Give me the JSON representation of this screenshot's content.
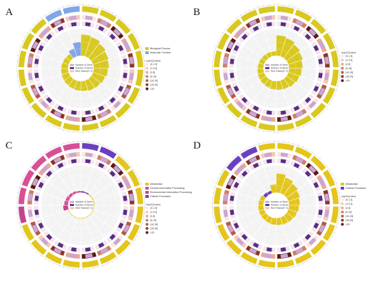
{
  "colors": {
    "biological_process": "#d9c81e",
    "molecular_function": "#7fa6e6",
    "metabolism": "#e3c51c",
    "genetic_information_processing": "#d84f95",
    "environmental_information_processing": "#c2448c",
    "cellular_processes": "#6a3fc0",
    "number_of_gene": "#c9a6d6",
    "number_of_degs": "#5b2d82",
    "rich_factor": "#f1c4a4",
    "pval_scale": [
      "#fbe7df",
      "#f4c9bc",
      "#e9a894",
      "#d27e69",
      "#b45a47",
      "#8c3527",
      "#5c1a12"
    ]
  },
  "panels": [
    {
      "letter": "A"
    },
    {
      "letter": "B"
    },
    {
      "letter": "C"
    },
    {
      "letter": "D"
    }
  ],
  "chart_data": [
    {
      "type": "circular-bar",
      "panel": "A",
      "legend": {
        "categories": [
          "Biological Process",
          "Molecular Function"
        ],
        "rings": [
          "Number of Gene",
          "Number of DEGs",
          "Rich Factor(0~1)"
        ],
        "pval_title": "-log10(Qvalue)",
        "pval_bins": [
          "(0,1.3]",
          "(1.3,2]",
          "(2,5]",
          "(5,10]",
          "(10,15]",
          "(15,20]",
          ">20"
        ]
      },
      "term_class": [
        "Biological Process",
        "Biological Process",
        "Biological Process",
        "Biological Process",
        "Biological Process",
        "Biological Process",
        "Biological Process",
        "Biological Process",
        "Biological Process",
        "Biological Process",
        "Biological Process",
        "Biological Process",
        "Biological Process",
        "Biological Process",
        "Biological Process",
        "Biological Process",
        "Biological Process",
        "Biological Process",
        "Molecular Function",
        "Molecular Function"
      ],
      "rich_factor": [
        0.78,
        0.74,
        0.66,
        0.6,
        0.56,
        0.52,
        0.46,
        0.42,
        0.4,
        0.36,
        0.34,
        0.32,
        0.3,
        0.28,
        0.26,
        0.24,
        0.22,
        0.2,
        0.3,
        0.5
      ]
    },
    {
      "type": "circular-bar",
      "panel": "B",
      "legend": {
        "categories": [],
        "rings": [
          "Number of Gene",
          "Number of DEGs",
          "Rich Factor(0~1)"
        ],
        "pval_title": "-log10(Qvalue)",
        "pval_bins": [
          "(0,1.3]",
          "(1.3,2]",
          "(2,5]",
          "(5,10]",
          "(10,15]",
          "(15,20]",
          ">20"
        ]
      },
      "term_class": [
        "Biological Process",
        "Biological Process",
        "Biological Process",
        "Biological Process",
        "Biological Process",
        "Biological Process",
        "Biological Process",
        "Biological Process",
        "Biological Process",
        "Biological Process",
        "Biological Process",
        "Biological Process",
        "Biological Process",
        "Biological Process",
        "Biological Process",
        "Biological Process",
        "Biological Process",
        "Biological Process",
        "Biological Process",
        "Biological Process"
      ],
      "rich_factor": [
        0.75,
        0.7,
        0.62,
        0.56,
        0.5,
        0.46,
        0.42,
        0.38,
        0.34,
        0.32,
        0.3,
        0.28,
        0.26,
        0.24,
        0.22,
        0.2,
        0.19,
        0.18,
        0.17,
        0.16
      ]
    },
    {
      "type": "circular-bar",
      "panel": "C",
      "legend": {
        "categories": [
          "Metabolism",
          "Genetic Information Processing",
          "Environmental Information Processing",
          "Cellular Processes"
        ],
        "rings": [
          "Number of Gene",
          "Number of DEGs",
          "Rich Factor(0~1)"
        ],
        "pval_title": "-log10(Qvalue)",
        "pval_bins": [
          "(0,1.3]",
          "(1.3,2]",
          "(2,5]",
          "(5,10]",
          "(10,15]",
          "(15,20]",
          ">20"
        ]
      },
      "term_class": [
        "Cellular Processes",
        "Cellular Processes",
        "Metabolism",
        "Metabolism",
        "Metabolism",
        "Metabolism",
        "Metabolism",
        "Metabolism",
        "Metabolism",
        "Metabolism",
        "Metabolism",
        "Metabolism",
        "Metabolism",
        "Metabolism",
        "Environmental Information Processing",
        "Genetic Information Processing",
        "Genetic Information Processing",
        "Genetic Information Processing",
        "Genetic Information Processing",
        "Genetic Information Processing"
      ],
      "rich_factor": [
        0.05,
        0.04,
        0.03,
        0.03,
        0.03,
        0.02,
        0.02,
        0.02,
        0.02,
        0.02,
        0.02,
        0.02,
        0.02,
        0.02,
        0.18,
        0.14,
        0.12,
        0.1,
        0.08,
        0.06
      ]
    },
    {
      "type": "circular-bar",
      "panel": "D",
      "legend": {
        "categories": [
          "Metabolism",
          "Cellular Processes"
        ],
        "rings": [
          "Number of Gene",
          "Number of DEGs",
          "Rich Factor(0~1)"
        ],
        "pval_title": "-log10(Qvalue)",
        "pval_bins": [
          "(0,1.3]",
          "(1.3,2]",
          "(2,5]",
          "(5,10]",
          "(10,15]",
          "(15,20]",
          ">20"
        ]
      },
      "term_class": [
        "Metabolism",
        "Metabolism",
        "Metabolism",
        "Metabolism",
        "Metabolism",
        "Metabolism",
        "Metabolism",
        "Metabolism",
        "Metabolism",
        "Metabolism",
        "Metabolism",
        "Metabolism",
        "Metabolism",
        "Metabolism",
        "Metabolism",
        "Metabolism",
        "Metabolism",
        "Cellular Processes",
        "Cellular Processes",
        "Metabolism"
      ],
      "rich_factor": [
        0.7,
        0.6,
        0.52,
        0.45,
        0.4,
        0.36,
        0.33,
        0.3,
        0.28,
        0.26,
        0.24,
        0.22,
        0.21,
        0.2,
        0.19,
        0.18,
        0.17,
        0.12,
        0.1,
        0.3
      ]
    }
  ]
}
